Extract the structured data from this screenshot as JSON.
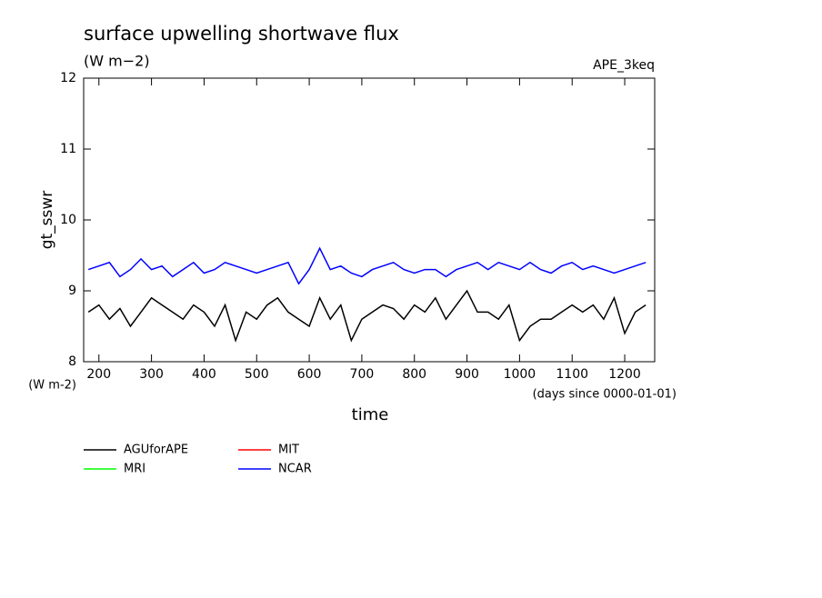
{
  "chart_data": {
    "type": "line",
    "title": "surface upwelling shortwave flux",
    "subtitle": "(W m−2)",
    "annotation": "APE_3keq",
    "ylabel": "gt_sswr",
    "yunit": "(W m-2)",
    "xlabel": "time",
    "xunit": "(days since 0000-01-01)",
    "x": [
      180,
      200,
      220,
      240,
      260,
      280,
      300,
      320,
      340,
      360,
      380,
      400,
      420,
      440,
      460,
      480,
      500,
      520,
      540,
      560,
      580,
      600,
      620,
      640,
      660,
      680,
      700,
      720,
      740,
      760,
      780,
      800,
      820,
      840,
      860,
      880,
      900,
      920,
      940,
      960,
      980,
      1000,
      1020,
      1040,
      1060,
      1080,
      1100,
      1120,
      1140,
      1160,
      1180,
      1200,
      1220,
      1240
    ],
    "series": [
      {
        "name": "AGUforAPE",
        "color": "#000000",
        "values": [
          8.7,
          8.8,
          8.6,
          8.75,
          8.5,
          8.7,
          8.9,
          8.8,
          8.7,
          8.6,
          8.8,
          8.7,
          8.5,
          8.8,
          8.3,
          8.7,
          8.6,
          8.8,
          8.9,
          8.7,
          8.6,
          8.5,
          8.9,
          8.6,
          8.8,
          8.3,
          8.6,
          8.7,
          8.8,
          8.75,
          8.6,
          8.8,
          8.7,
          8.9,
          8.6,
          8.8,
          9.0,
          8.7,
          8.7,
          8.6,
          8.8,
          8.3,
          8.5,
          8.6,
          8.6,
          8.7,
          8.8,
          8.7,
          8.8,
          8.6,
          8.9,
          8.4,
          8.7,
          8.8
        ]
      },
      {
        "name": "MIT",
        "color": "#ff0000",
        "values": [
          null,
          null,
          null,
          null,
          null,
          null,
          null,
          null,
          null,
          null,
          null,
          null,
          null,
          null,
          null,
          null,
          null,
          null,
          null,
          null,
          null,
          null,
          null,
          null,
          null,
          null,
          null,
          null,
          null,
          null,
          null,
          null,
          null,
          null,
          null,
          null,
          null,
          null,
          null,
          null,
          null,
          null,
          null,
          null,
          null,
          null,
          null,
          null,
          null,
          null,
          null,
          null,
          null,
          null
        ]
      },
      {
        "name": "MRI",
        "color": "#00ff00",
        "values": [
          null,
          null,
          null,
          null,
          null,
          null,
          null,
          null,
          null,
          null,
          null,
          null,
          null,
          null,
          null,
          null,
          null,
          null,
          null,
          null,
          null,
          null,
          null,
          null,
          null,
          null,
          null,
          null,
          null,
          null,
          null,
          null,
          null,
          null,
          null,
          null,
          null,
          null,
          null,
          null,
          null,
          null,
          null,
          null,
          null,
          null,
          null,
          null,
          null,
          null,
          null,
          null,
          null,
          null
        ]
      },
      {
        "name": "NCAR",
        "color": "#0000ff",
        "values": [
          9.3,
          9.35,
          9.4,
          9.2,
          9.3,
          9.45,
          9.3,
          9.35,
          9.2,
          9.3,
          9.4,
          9.25,
          9.3,
          9.4,
          9.35,
          9.3,
          9.25,
          9.3,
          9.35,
          9.4,
          9.1,
          9.3,
          9.6,
          9.3,
          9.35,
          9.25,
          9.2,
          9.3,
          9.35,
          9.4,
          9.3,
          9.25,
          9.3,
          9.3,
          9.2,
          9.3,
          9.35,
          9.4,
          9.3,
          9.4,
          9.35,
          9.3,
          9.4,
          9.3,
          9.25,
          9.35,
          9.4,
          9.3,
          9.35,
          9.3,
          9.25,
          9.3,
          9.35,
          9.4
        ]
      }
    ],
    "xlim": [
      171,
      1257
    ],
    "ylim": [
      8,
      12
    ],
    "xticks": [
      200,
      300,
      400,
      500,
      600,
      700,
      800,
      900,
      1000,
      1100,
      1200
    ],
    "yticks": [
      8,
      9,
      10,
      11,
      12
    ]
  }
}
